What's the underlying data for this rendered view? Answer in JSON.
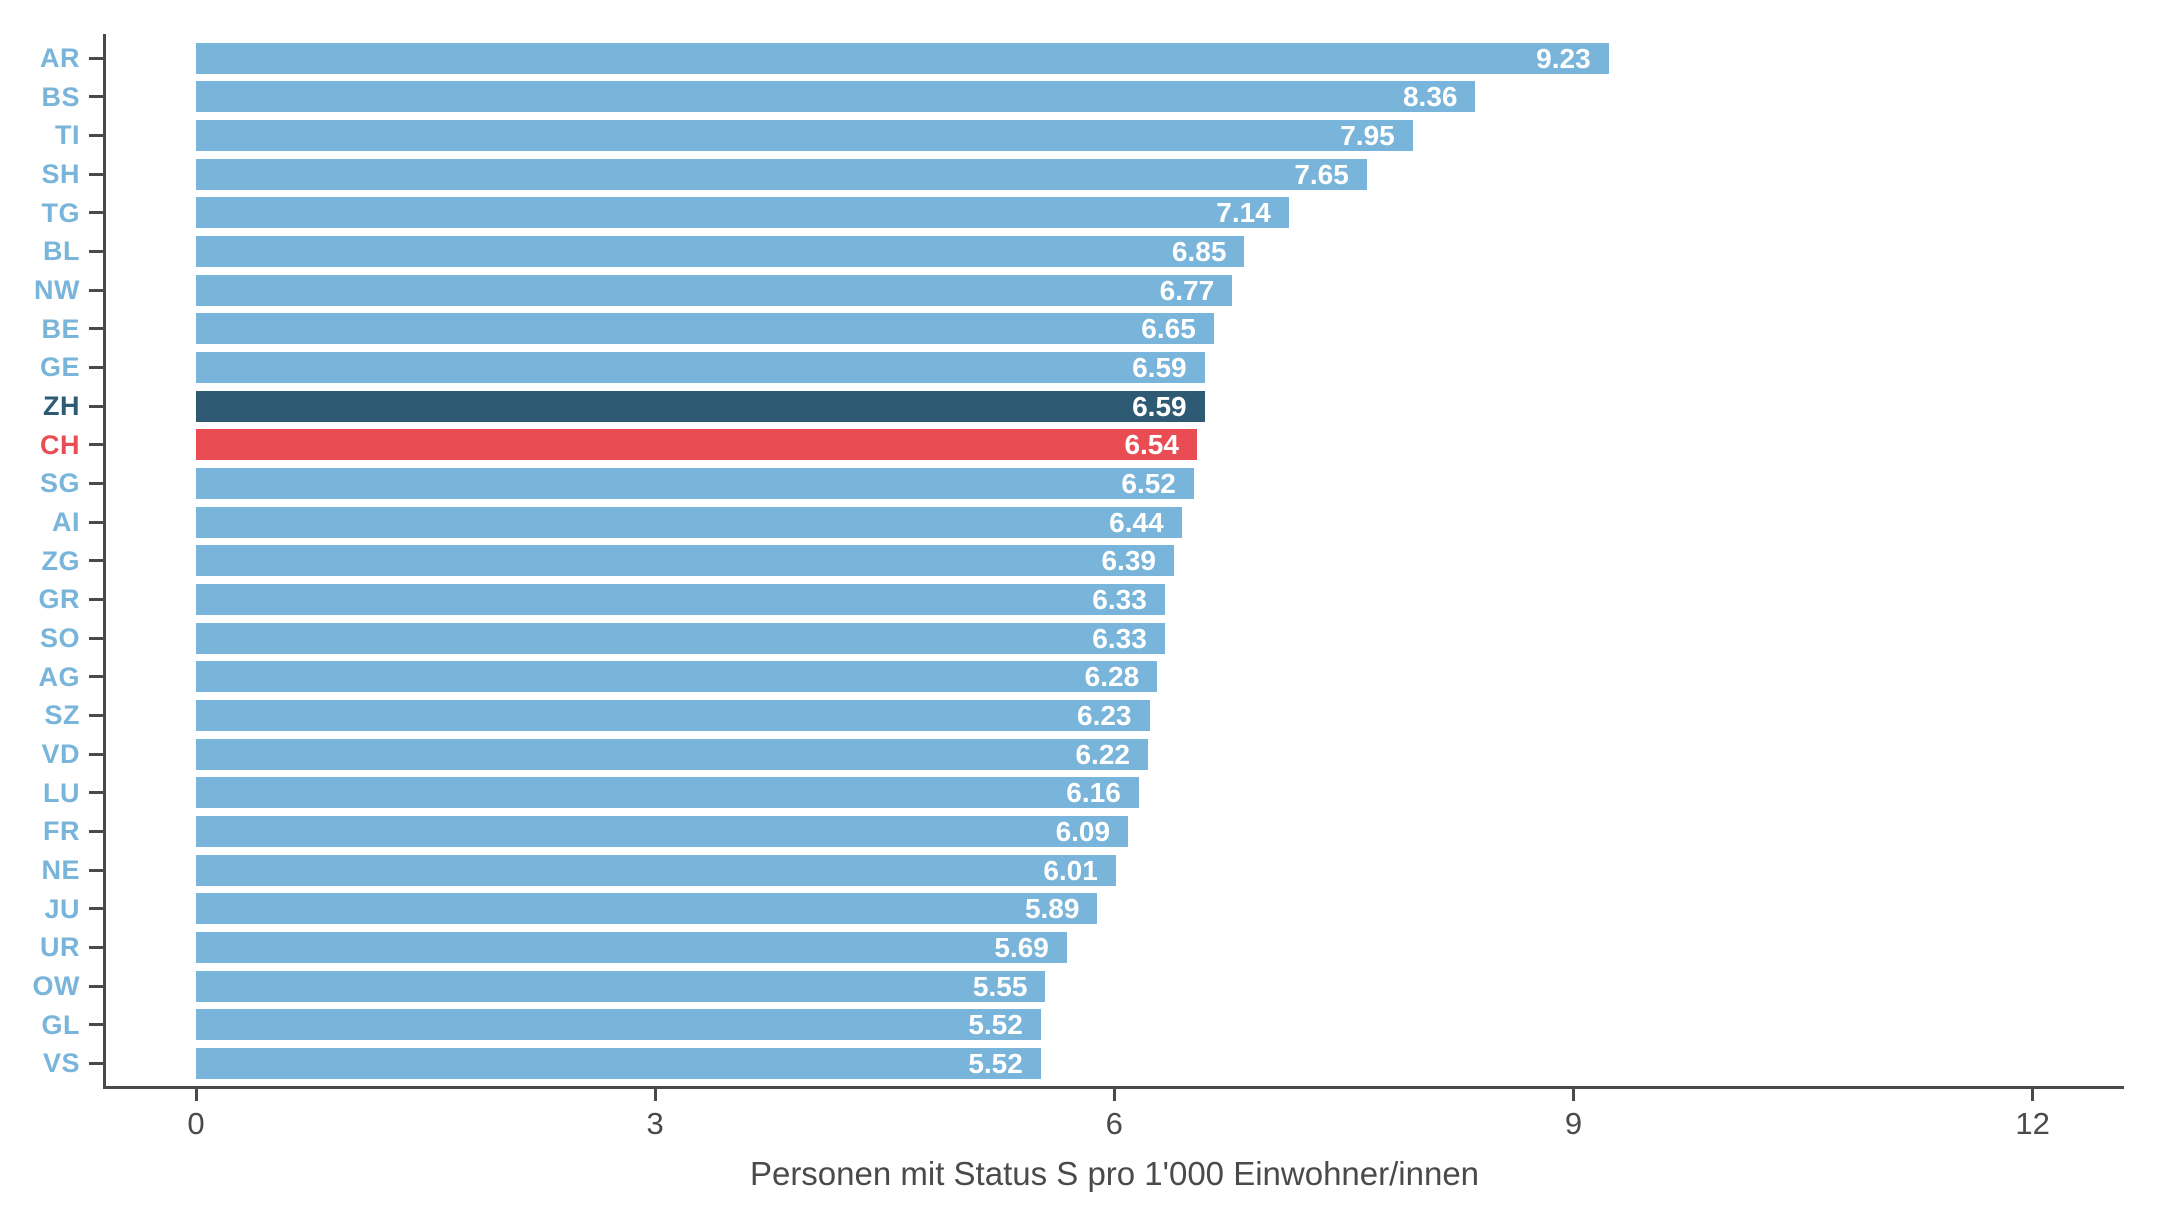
{
  "chart_data": {
    "type": "bar",
    "orientation": "horizontal",
    "title": "",
    "xlabel": "Personen mit Status S pro 1'000 Einwohner/innen",
    "ylabel": "",
    "xlim": [
      0,
      12
    ],
    "xticks": [
      0,
      3,
      6,
      9,
      12
    ],
    "grid": false,
    "legend": "none",
    "value_decimals": 2,
    "categories": [
      "AR",
      "BS",
      "TI",
      "SH",
      "TG",
      "BL",
      "NW",
      "BE",
      "GE",
      "ZH",
      "CH",
      "SG",
      "AI",
      "ZG",
      "GR",
      "SO",
      "AG",
      "SZ",
      "VD",
      "LU",
      "FR",
      "NE",
      "JU",
      "UR",
      "OW",
      "GL",
      "VS"
    ],
    "values": [
      9.23,
      8.36,
      7.95,
      7.65,
      7.14,
      6.85,
      6.77,
      6.65,
      6.59,
      6.59,
      6.54,
      6.52,
      6.44,
      6.39,
      6.33,
      6.33,
      6.28,
      6.23,
      6.22,
      6.16,
      6.09,
      6.01,
      5.89,
      5.69,
      5.55,
      5.52,
      5.52
    ],
    "highlight_styles": {
      "ZH": "dark",
      "CH": "accent"
    },
    "colors": {
      "bar_default": "#79b5da",
      "bar_dark": "#2e5a74",
      "bar_accent": "#e94c52",
      "label_default": "#79b5da",
      "label_dark": "#2e5a74",
      "label_accent": "#e94c52",
      "value_text": "#ffffff",
      "axis": "#4a4a4a"
    }
  }
}
